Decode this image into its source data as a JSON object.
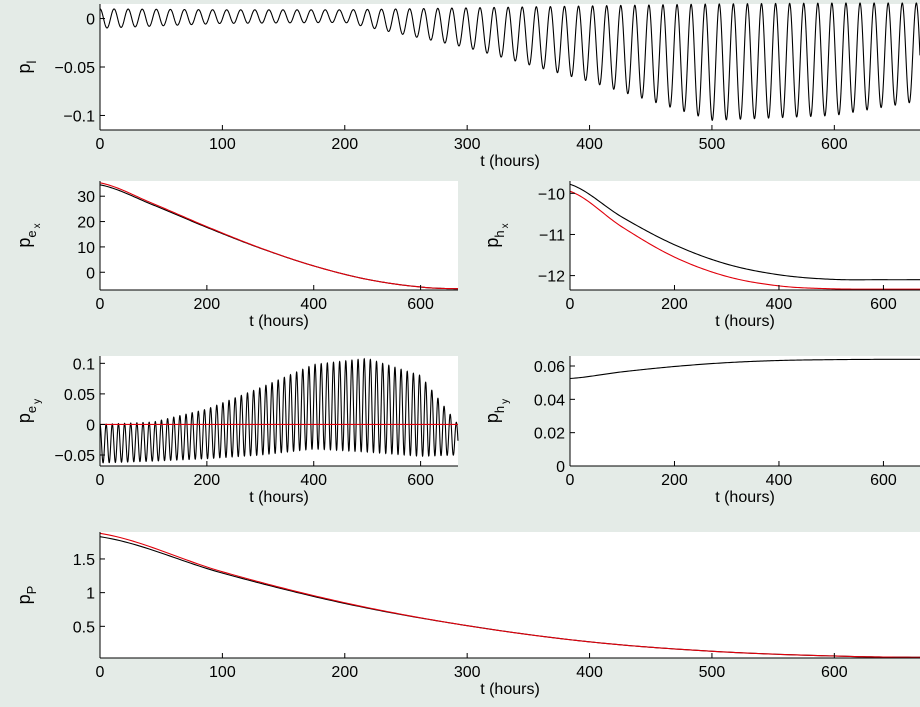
{
  "figure": {
    "background": "#e4ebe7",
    "plot_background": "#ffffff",
    "line_colors": [
      "#000000",
      "#e0000b"
    ]
  },
  "chart_data": [
    {
      "id": "pl",
      "type": "line",
      "ylabel": "p",
      "ylabel_sub": "l",
      "ylabel_subsub": "",
      "xlabel": "t (hours)",
      "xlim": [
        0,
        670
      ],
      "ylim": [
        -0.115,
        0.015
      ],
      "xticks": [
        "0",
        "100",
        "200",
        "300",
        "400",
        "500",
        "600"
      ],
      "yticks": [
        "−0.1",
        "−0.05",
        "0"
      ],
      "series": [
        {
          "color": "#000000",
          "kind": "oscillation",
          "period": 11.5,
          "baseline": 0.0,
          "envelope_t": [
            0,
            100,
            200,
            300,
            400,
            500,
            600,
            670
          ],
          "amp_top": [
            0.01,
            0.009,
            0.009,
            0.011,
            0.013,
            0.015,
            0.016,
            0.016
          ],
          "amp_bottom": [
            -0.01,
            -0.005,
            -0.004,
            -0.03,
            -0.065,
            -0.105,
            -0.1,
            -0.085
          ]
        }
      ]
    },
    {
      "id": "pex",
      "type": "line",
      "ylabel": "p",
      "ylabel_sub": "e",
      "ylabel_subsub": "x",
      "xlabel": "t (hours)",
      "xlim": [
        0,
        670
      ],
      "ylim": [
        -7,
        36
      ],
      "xticks": [
        "0",
        "200",
        "400",
        "600"
      ],
      "yticks": [
        "0",
        "10",
        "20",
        "30"
      ],
      "series": [
        {
          "color": "#000000",
          "x": [
            0,
            100,
            200,
            300,
            400,
            500,
            600,
            670
          ],
          "y": [
            34.5,
            26.5,
            17.7,
            9.5,
            2.5,
            -2.8,
            -5.8,
            -6.5
          ]
        },
        {
          "color": "#e0000b",
          "x": [
            0,
            100,
            200,
            300,
            400,
            500,
            600,
            670
          ],
          "y": [
            35.3,
            27.0,
            18.0,
            9.6,
            2.5,
            -2.8,
            -5.8,
            -6.5
          ]
        }
      ]
    },
    {
      "id": "phx",
      "type": "line",
      "ylabel": "p",
      "ylabel_sub": "h",
      "ylabel_subsub": "x",
      "xlabel": "t (hours)",
      "xlim": [
        0,
        670
      ],
      "ylim": [
        -12.35,
        -9.7
      ],
      "xticks": [
        "0",
        "200",
        "400",
        "600"
      ],
      "yticks": [
        "−12",
        "−11",
        "−10"
      ],
      "series": [
        {
          "color": "#000000",
          "x": [
            0,
            100,
            200,
            300,
            400,
            500,
            600,
            670
          ],
          "y": [
            -9.78,
            -10.58,
            -11.25,
            -11.72,
            -11.98,
            -12.09,
            -12.1,
            -12.1
          ]
        },
        {
          "color": "#e0000b",
          "x": [
            0,
            100,
            200,
            300,
            400,
            500,
            600,
            670
          ],
          "y": [
            -9.95,
            -10.82,
            -11.55,
            -12.02,
            -12.25,
            -12.32,
            -12.33,
            -12.33
          ]
        }
      ]
    },
    {
      "id": "pey",
      "type": "line",
      "ylabel": "p",
      "ylabel_sub": "e",
      "ylabel_subsub": "y",
      "xlabel": "t (hours)",
      "xlim": [
        0,
        670
      ],
      "ylim": [
        -0.068,
        0.112
      ],
      "xticks": [
        "0",
        "200",
        "400",
        "600"
      ],
      "yticks": [
        "−0.05",
        "0",
        "0.05",
        "0.1"
      ],
      "series": [
        {
          "color": "#000000",
          "kind": "oscillation",
          "period": 11.5,
          "baseline": -0.015,
          "envelope_t": [
            0,
            100,
            200,
            300,
            400,
            500,
            600,
            670
          ],
          "amp_top": [
            0.0,
            0.004,
            0.025,
            0.06,
            0.098,
            0.108,
            0.08,
            0.0
          ],
          "amp_bottom": [
            -0.063,
            -0.06,
            -0.056,
            -0.05,
            -0.04,
            -0.045,
            -0.052,
            -0.05
          ]
        },
        {
          "color": "#e0000b",
          "x": [
            0,
            670
          ],
          "y": [
            0,
            0
          ]
        }
      ]
    },
    {
      "id": "phy",
      "type": "line",
      "ylabel": "p",
      "ylabel_sub": "h",
      "ylabel_subsub": "y",
      "xlabel": "t (hours)",
      "xlim": [
        0,
        670
      ],
      "ylim": [
        0,
        0.066
      ],
      "xticks": [
        "0",
        "200",
        "400",
        "600"
      ],
      "yticks": [
        "0",
        "0.02",
        "0.04",
        "0.06"
      ],
      "series": [
        {
          "color": "#000000",
          "x": [
            0,
            100,
            200,
            300,
            400,
            500,
            600,
            670
          ],
          "y": [
            0.0525,
            0.0565,
            0.0597,
            0.062,
            0.0633,
            0.0638,
            0.064,
            0.064
          ]
        },
        {
          "color": "#e0000b",
          "x": [
            0,
            670
          ],
          "y": [
            0,
            0
          ]
        }
      ]
    },
    {
      "id": "pp",
      "type": "line",
      "ylabel": "p",
      "ylabel_sub": "P",
      "ylabel_subsub": "",
      "xlabel": "t (hours)",
      "xlim": [
        0,
        670
      ],
      "ylim": [
        0.03,
        1.9
      ],
      "xticks": [
        "0",
        "100",
        "200",
        "300",
        "400",
        "500",
        "600"
      ],
      "yticks": [
        "0.5",
        "1",
        "1.5"
      ],
      "series": [
        {
          "color": "#000000",
          "x": [
            0,
            100,
            200,
            300,
            400,
            500,
            600,
            670
          ],
          "y": [
            1.83,
            1.29,
            0.84,
            0.51,
            0.27,
            0.13,
            0.06,
            0.04
          ]
        },
        {
          "color": "#e0000b",
          "x": [
            0,
            100,
            200,
            300,
            400,
            500,
            600,
            670
          ],
          "y": [
            1.88,
            1.31,
            0.85,
            0.51,
            0.27,
            0.13,
            0.06,
            0.04
          ]
        }
      ]
    }
  ]
}
